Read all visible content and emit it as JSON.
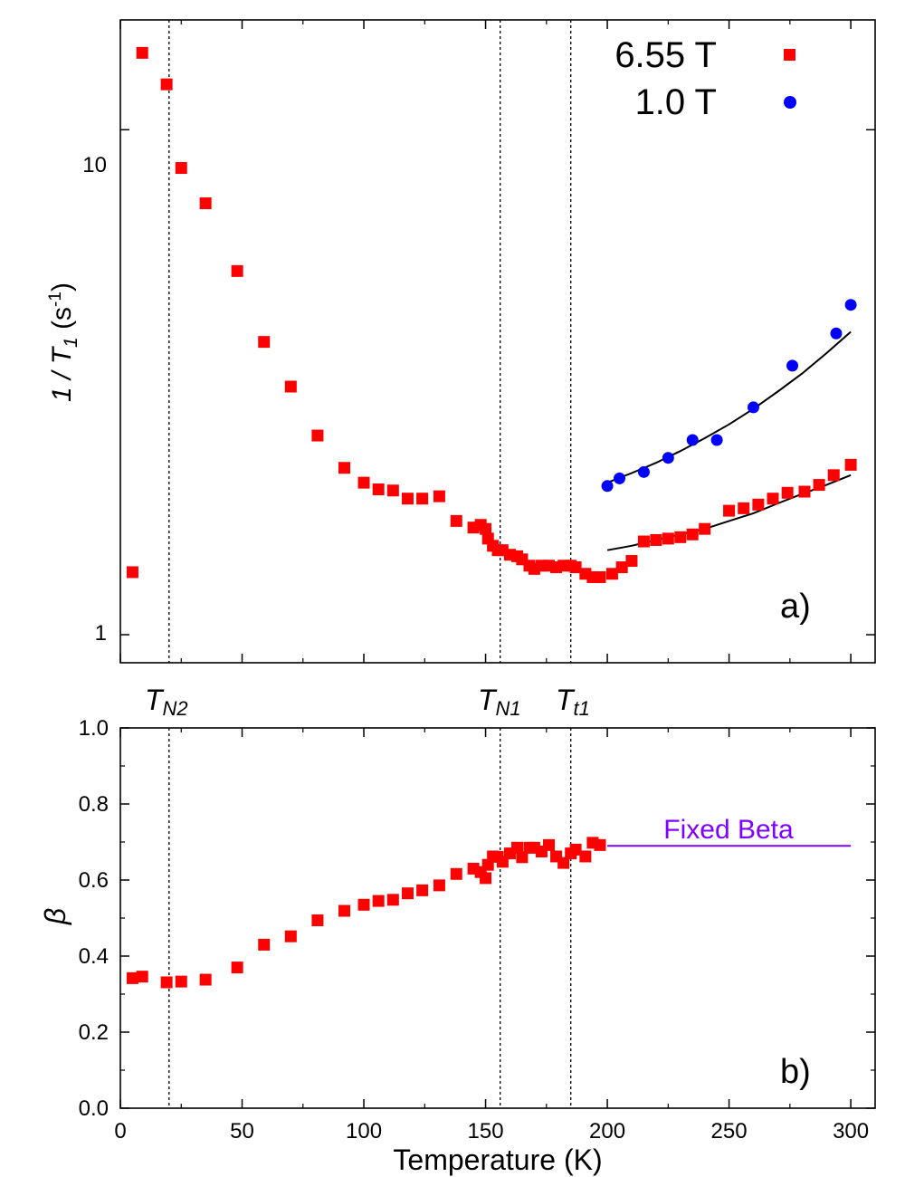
{
  "chart_data": [
    {
      "panel": "a",
      "type": "scatter",
      "yscale": "log",
      "ylabel_main": "1 / T",
      "ylabel_sub": "1",
      "ylabel_unit_open": " (s",
      "ylabel_unit_exp": "-1",
      "ylabel_unit_close": ")",
      "xlim": [
        0,
        310
      ],
      "ylim": [
        0.88,
        16.5
      ],
      "y_ticks": [
        1,
        10
      ],
      "y_tick_labels": [
        "1",
        "10"
      ],
      "panel_label": "a)",
      "legend": {
        "placement": "top-right",
        "entries": [
          {
            "label": "6.55 T",
            "marker": "square",
            "color": "#ff0000"
          },
          {
            "label": "1.0 T",
            "marker": "circle",
            "color": "#0000ff"
          }
        ]
      },
      "series": [
        {
          "name": "6.55 T",
          "marker": "square",
          "color": "#ff0000",
          "x": [
            5,
            9,
            19,
            25,
            35,
            48,
            59,
            70,
            81,
            92,
            100,
            106,
            112,
            118,
            124,
            131,
            138,
            145,
            148,
            150,
            151,
            153,
            155,
            157,
            160,
            163,
            165,
            168,
            170,
            173,
            176,
            179,
            182,
            185,
            187,
            191,
            194,
            197,
            202,
            206,
            210,
            215,
            220,
            225,
            230,
            235,
            240,
            250,
            256,
            262,
            268,
            274,
            281,
            287,
            293,
            300
          ],
          "y": [
            1.33,
            14.2,
            12.3,
            8.4,
            7.15,
            5.25,
            3.8,
            3.1,
            2.48,
            2.14,
            2.0,
            1.94,
            1.93,
            1.86,
            1.86,
            1.88,
            1.68,
            1.63,
            1.65,
            1.62,
            1.55,
            1.5,
            1.47,
            1.47,
            1.44,
            1.43,
            1.41,
            1.37,
            1.35,
            1.37,
            1.37,
            1.36,
            1.37,
            1.37,
            1.36,
            1.32,
            1.3,
            1.3,
            1.32,
            1.36,
            1.4,
            1.53,
            1.54,
            1.55,
            1.56,
            1.58,
            1.62,
            1.76,
            1.78,
            1.81,
            1.86,
            1.91,
            1.92,
            1.98,
            2.07,
            2.17
          ]
        },
        {
          "name": "1.0 T",
          "marker": "circle",
          "color": "#0000ff",
          "x": [
            200,
            205,
            215,
            225,
            235,
            245,
            260,
            276,
            294,
            300
          ],
          "y": [
            1.97,
            2.04,
            2.1,
            2.24,
            2.43,
            2.43,
            2.82,
            3.41,
            3.95,
            4.5
          ]
        }
      ],
      "fits": [
        {
          "series": "1.0 T",
          "x": [
            200,
            210,
            220,
            230,
            240,
            250,
            260,
            270,
            280,
            290,
            300
          ],
          "y": [
            2.0,
            2.09,
            2.19,
            2.31,
            2.45,
            2.61,
            2.8,
            3.03,
            3.29,
            3.61,
            3.98
          ]
        },
        {
          "series": "6.55 T",
          "x": [
            200,
            210,
            220,
            230,
            240,
            250,
            260,
            270,
            280,
            290,
            300
          ],
          "y": [
            1.47,
            1.5,
            1.54,
            1.58,
            1.62,
            1.68,
            1.74,
            1.82,
            1.9,
            1.98,
            2.07
          ]
        }
      ],
      "vlines": [
        {
          "x": 20,
          "label_main": "T",
          "label_sub": "N2"
        },
        {
          "x": 156,
          "label_main": "T",
          "label_sub": "N1"
        },
        {
          "x": 185,
          "label_main": "T",
          "label_sub": "t1"
        }
      ]
    },
    {
      "panel": "b",
      "type": "scatter",
      "title": "",
      "xlabel": "Temperature (K)",
      "ylabel": "β",
      "xlim": [
        0,
        310
      ],
      "ylim": [
        0.0,
        1.0
      ],
      "x_ticks": [
        0,
        50,
        100,
        150,
        200,
        250,
        300
      ],
      "x_tick_labels": [
        "0",
        "50",
        "100",
        "150",
        "200",
        "250",
        "300"
      ],
      "y_ticks": [
        0.0,
        0.2,
        0.4,
        0.6,
        0.8,
        1.0
      ],
      "y_tick_labels": [
        "0.0",
        "0.2",
        "0.4",
        "0.6",
        "0.8",
        "1.0"
      ],
      "panel_label": "b)",
      "series": [
        {
          "name": "6.55 T",
          "marker": "square",
          "color": "#ff0000",
          "x": [
            5,
            9,
            19,
            25,
            35,
            48,
            59,
            70,
            81,
            92,
            100,
            106,
            112,
            118,
            124,
            131,
            138,
            145,
            148,
            150,
            151,
            153,
            155,
            157,
            160,
            163,
            165,
            168,
            170,
            173,
            176,
            179,
            182,
            185,
            187,
            191,
            194,
            197
          ],
          "y": [
            0.342,
            0.346,
            0.331,
            0.333,
            0.338,
            0.37,
            0.43,
            0.452,
            0.494,
            0.519,
            0.535,
            0.545,
            0.548,
            0.565,
            0.573,
            0.586,
            0.616,
            0.63,
            0.621,
            0.605,
            0.64,
            0.662,
            0.661,
            0.648,
            0.67,
            0.685,
            0.66,
            0.685,
            0.685,
            0.675,
            0.692,
            0.662,
            0.645,
            0.67,
            0.68,
            0.662,
            0.698,
            0.692
          ]
        }
      ],
      "reference_line": {
        "label": "Fixed Beta",
        "x": [
          200,
          300
        ],
        "y": 0.69,
        "color": "#7f00ff"
      },
      "vlines": [
        {
          "x": 20
        },
        {
          "x": 156
        },
        {
          "x": 185
        }
      ]
    }
  ]
}
